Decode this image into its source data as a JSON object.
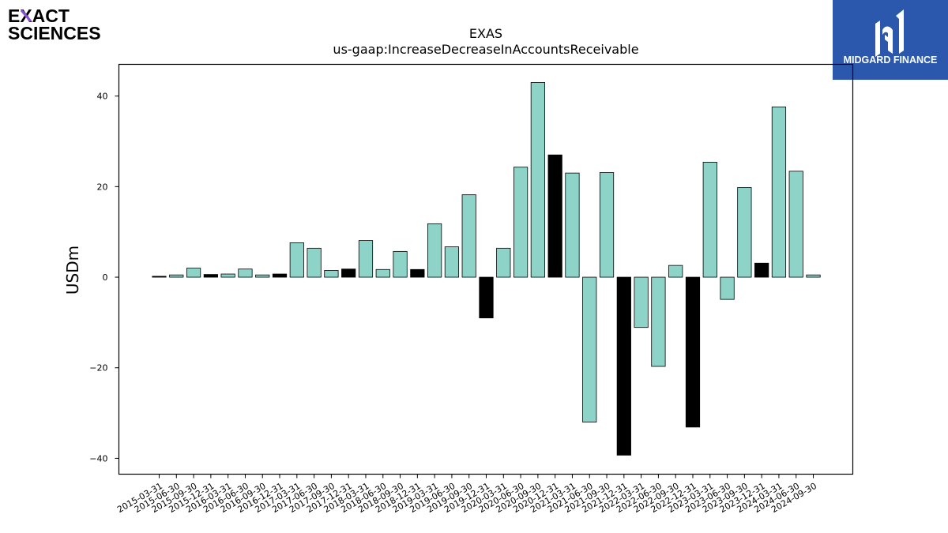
{
  "branding": {
    "left_logo_line1": "EXACT",
    "left_logo_line2": "SCIENCES",
    "right_logo_text": "MIDGARD FINANCE"
  },
  "colors": {
    "bar_default": "#8dd3c7",
    "bar_highlight": "#000000",
    "edge": "#000000",
    "right_logo_bg": "#2b58ad",
    "left_logo_accent": "#8a4fe0"
  },
  "chart_data": {
    "type": "bar",
    "title": "EXAS",
    "subtitle": "us-gaap:IncreaseDecreaseInAccountsReceivable",
    "xlabel": "",
    "ylabel": "USDm",
    "ylim": [
      -43.5,
      47
    ],
    "yticks": [
      -40,
      -20,
      0,
      20,
      40
    ],
    "ytick_labels": [
      "−40",
      "−20",
      "0",
      "20",
      "40"
    ],
    "grid": false,
    "categories": [
      "2015-03-31",
      "2015-06-30",
      "2015-09-30",
      "2015-12-31",
      "2016-03-31",
      "2016-06-30",
      "2016-09-30",
      "2016-12-31",
      "2017-03-31",
      "2017-06-30",
      "2017-09-30",
      "2017-12-31",
      "2018-03-31",
      "2018-06-30",
      "2018-09-30",
      "2018-12-31",
      "2019-03-31",
      "2019-06-30",
      "2019-09-30",
      "2019-12-31",
      "2020-03-31",
      "2020-06-30",
      "2020-09-30",
      "2020-12-31",
      "2021-03-31",
      "2021-06-30",
      "2021-09-30",
      "2021-12-31",
      "2022-03-31",
      "2022-06-30",
      "2022-09-30",
      "2022-12-31",
      "2023-03-31",
      "2023-06-30",
      "2023-09-30",
      "2023-12-31",
      "2024-03-31",
      "2024-06-30",
      "2024-09-30"
    ],
    "values": [
      0.2,
      0.5,
      2.0,
      0.6,
      0.7,
      1.8,
      0.5,
      0.7,
      7.6,
      6.4,
      1.5,
      1.8,
      8.1,
      1.7,
      5.7,
      1.7,
      11.8,
      6.7,
      18.2,
      -9.0,
      6.4,
      24.3,
      43.0,
      27.0,
      23.0,
      -32.0,
      23.1,
      -39.3,
      -11.1,
      -19.7,
      2.6,
      -33.1,
      25.4,
      -4.9,
      19.8,
      3.1,
      37.6,
      23.4,
      0.5
    ],
    "highlight": [
      true,
      false,
      false,
      true,
      false,
      false,
      false,
      true,
      false,
      false,
      false,
      true,
      false,
      false,
      false,
      true,
      false,
      false,
      false,
      true,
      false,
      false,
      false,
      true,
      false,
      false,
      false,
      true,
      false,
      false,
      false,
      true,
      false,
      false,
      false,
      true,
      false,
      false,
      false
    ]
  }
}
